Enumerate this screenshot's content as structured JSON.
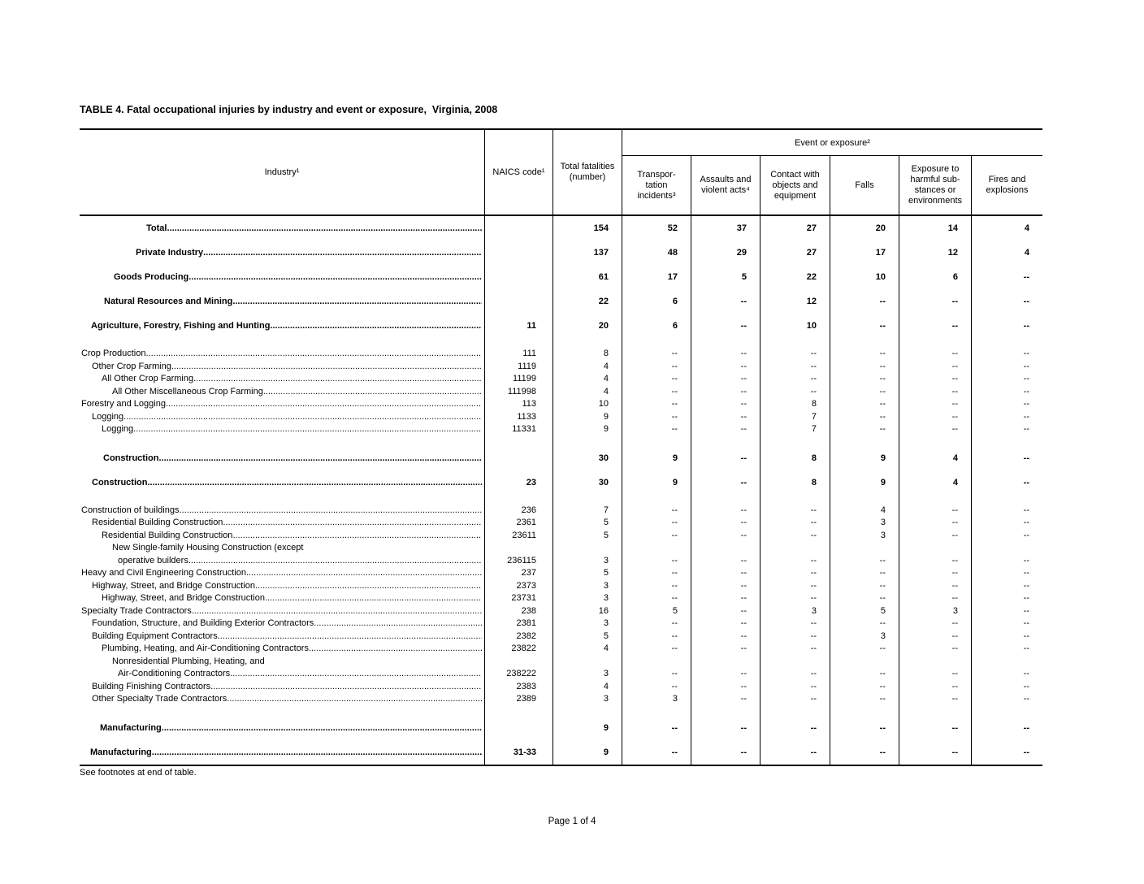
{
  "page": {
    "title": "TABLE 4. Fatal occupational injuries by industry and event or exposure,  Virginia, 2008",
    "footnote": "See footnotes at end of table.",
    "page_number": "Page 1 of 4"
  },
  "table": {
    "header": {
      "industry": "Industry¹",
      "naics": "NAICS code¹",
      "total": "Total fatalities\n(number)",
      "event_group": "Event or exposure²",
      "event_columns": [
        "Transpor-\ntation\nincidents³",
        "Assaults and\nviolent acts⁴",
        "Contact with\nobjects and\nequipment",
        "Falls",
        "Exposure to\nharmful sub-\nstances or\nenvironments",
        "Fires and\nexplosions"
      ]
    },
    "rows": [
      {
        "type": "s",
        "indent": 82,
        "label": "Total",
        "naics": "",
        "values": [
          "154",
          "52",
          "37",
          "27",
          "20",
          "14",
          "4"
        ]
      },
      {
        "type": "s",
        "indent": 69,
        "label": "Private Industry",
        "naics": "",
        "values": [
          "137",
          "48",
          "29",
          "27",
          "17",
          "12",
          "4"
        ]
      },
      {
        "type": "s",
        "indent": 42,
        "label": "Goods Producing",
        "naics": "",
        "values": [
          "61",
          "17",
          "5",
          "22",
          "10",
          "6",
          "--"
        ]
      },
      {
        "type": "s",
        "indent": 30,
        "label": "Natural Resources and Mining",
        "naics": "",
        "values": [
          "22",
          "6",
          "--",
          "12",
          "--",
          "--",
          "--"
        ]
      },
      {
        "type": "s",
        "indent": 14,
        "label": "Agriculture, Forestry, Fishing and Hunting",
        "naics": "11",
        "values": [
          "20",
          "6",
          "--",
          "10",
          "--",
          "--",
          "--"
        ]
      },
      {
        "type": "sp"
      },
      {
        "type": "d",
        "indent": 2,
        "label": "Crop Production",
        "naics": "111",
        "values": [
          "8",
          "--",
          "--",
          "--",
          "--",
          "--",
          "--"
        ]
      },
      {
        "type": "d",
        "indent": 15,
        "label": "Other Crop Farming",
        "naics": "1119",
        "values": [
          "4",
          "--",
          "--",
          "--",
          "--",
          "--",
          "--"
        ]
      },
      {
        "type": "d",
        "indent": 27,
        "label": "All Other Crop Farming",
        "naics": "11199",
        "values": [
          "4",
          "--",
          "--",
          "--",
          "--",
          "--",
          "--"
        ]
      },
      {
        "type": "d",
        "indent": 40,
        "label": "All Other Miscellaneous Crop Farming",
        "naics": "111998",
        "values": [
          "4",
          "--",
          "--",
          "--",
          "--",
          "--",
          "--"
        ]
      },
      {
        "type": "d",
        "indent": 2,
        "label": "Forestry and Logging",
        "naics": "113",
        "values": [
          "10",
          "--",
          "--",
          "8",
          "--",
          "--",
          "--"
        ]
      },
      {
        "type": "d",
        "indent": 15,
        "label": "Logging",
        "naics": "1133",
        "values": [
          "9",
          "--",
          "--",
          "7",
          "--",
          "--",
          "--"
        ]
      },
      {
        "type": "d",
        "indent": 27,
        "label": "Logging",
        "naics": "11331",
        "values": [
          "9",
          "--",
          "--",
          "7",
          "--",
          "--",
          "--"
        ]
      },
      {
        "type": "sp"
      },
      {
        "type": "s",
        "indent": 29,
        "label": "Construction",
        "naics": "",
        "values": [
          "30",
          "9",
          "--",
          "8",
          "9",
          "4",
          "--"
        ]
      },
      {
        "type": "s",
        "indent": 15,
        "label": "Construction",
        "naics": "23",
        "values": [
          "30",
          "9",
          "--",
          "8",
          "9",
          "4",
          "--"
        ]
      },
      {
        "type": "sp"
      },
      {
        "type": "d",
        "indent": 2,
        "label": "Construction of buildings",
        "naics": "236",
        "values": [
          "7",
          "--",
          "--",
          "--",
          "4",
          "--",
          "--"
        ]
      },
      {
        "type": "d",
        "indent": 15,
        "label": "Residential Building Construction",
        "naics": "2361",
        "values": [
          "5",
          "--",
          "--",
          "--",
          "3",
          "--",
          "--"
        ]
      },
      {
        "type": "d",
        "indent": 27,
        "label": "Residential Building Construction",
        "naics": "23611",
        "values": [
          "5",
          "--",
          "--",
          "--",
          "3",
          "--",
          "--"
        ]
      },
      {
        "type": "c",
        "indent": 40,
        "label": "New Single-family Housing Construction (except",
        "naics": "",
        "values": [
          "",
          "",
          "",
          "",
          "",
          "",
          ""
        ]
      },
      {
        "type": "d",
        "indent": 47,
        "label": "operative builders",
        "naics": "236115",
        "values": [
          "3",
          "--",
          "--",
          "--",
          "--",
          "--",
          "--"
        ]
      },
      {
        "type": "d",
        "indent": 2,
        "label": "Heavy and Civil Engineering Construction",
        "naics": "237",
        "values": [
          "5",
          "--",
          "--",
          "--",
          "--",
          "--",
          "--"
        ]
      },
      {
        "type": "d",
        "indent": 15,
        "label": "Highway, Street, and Bridge Construction",
        "naics": "2373",
        "values": [
          "3",
          "--",
          "--",
          "--",
          "--",
          "--",
          "--"
        ]
      },
      {
        "type": "d",
        "indent": 27,
        "label": "Highway, Street, and Bridge Construction",
        "naics": "23731",
        "values": [
          "3",
          "--",
          "--",
          "--",
          "--",
          "--",
          "--"
        ]
      },
      {
        "type": "d",
        "indent": 2,
        "label": "Specialty Trade Contractors",
        "naics": "238",
        "values": [
          "16",
          "5",
          "--",
          "3",
          "5",
          "3",
          "--"
        ]
      },
      {
        "type": "d",
        "indent": 15,
        "label": "Foundation, Structure, and Building Exterior Contractors",
        "naics": "2381",
        "values": [
          "3",
          "--",
          "--",
          "--",
          "--",
          "--",
          "--"
        ]
      },
      {
        "type": "d",
        "indent": 15,
        "label": "Building Equipment Contractors",
        "naics": "2382",
        "values": [
          "5",
          "--",
          "--",
          "--",
          "3",
          "--",
          "--"
        ]
      },
      {
        "type": "d",
        "indent": 27,
        "label": "Plumbing, Heating, and Air-Conditioning Contractors",
        "naics": "23822",
        "values": [
          "4",
          "--",
          "--",
          "--",
          "--",
          "--",
          "--"
        ]
      },
      {
        "type": "c",
        "indent": 40,
        "label": "Nonresidential Plumbing, Heating, and",
        "naics": "",
        "values": [
          "",
          "",
          "",
          "",
          "",
          "",
          ""
        ]
      },
      {
        "type": "d",
        "indent": 47,
        "label": "Air-Conditioning Contractors",
        "naics": "238222",
        "values": [
          "3",
          "--",
          "--",
          "--",
          "--",
          "--",
          "--"
        ]
      },
      {
        "type": "d",
        "indent": 15,
        "label": "Building Finishing Contractors",
        "naics": "2383",
        "values": [
          "4",
          "--",
          "--",
          "--",
          "--",
          "--",
          "--"
        ]
      },
      {
        "type": "d",
        "indent": 15,
        "label": "Other Specialty Trade Contractors",
        "naics": "2389",
        "values": [
          "3",
          "3",
          "--",
          "--",
          "--",
          "--",
          "--"
        ]
      },
      {
        "type": "sp"
      },
      {
        "type": "s",
        "indent": 25,
        "label": "Manufacturing",
        "naics": "",
        "values": [
          "9",
          "--",
          "--",
          "--",
          "--",
          "--",
          "--"
        ]
      },
      {
        "type": "s",
        "indent": 13,
        "label": "Manufacturing",
        "naics": "31-33",
        "values": [
          "9",
          "--",
          "--",
          "--",
          "--",
          "--",
          "--"
        ]
      }
    ]
  }
}
